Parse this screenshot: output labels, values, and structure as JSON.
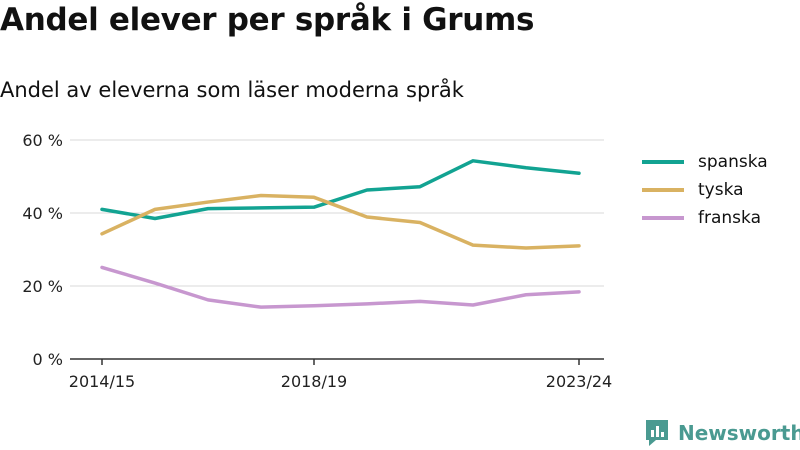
{
  "title": "Andel elever per språk i Grums",
  "subtitle": "Andel av eleverna som läser moderna språk",
  "brand": {
    "name": "Newsworthy",
    "icon": "newsworthy-logo-icon",
    "color": "#4a9a91"
  },
  "chart_data": {
    "type": "line",
    "x": [
      "2014/15",
      "2015/16",
      "2016/17",
      "2017/18",
      "2018/19",
      "2019/20",
      "2020/21",
      "2021/22",
      "2022/23",
      "2023/24"
    ],
    "x_tick_labels": [
      "2014/15",
      "2018/19",
      "2023/24"
    ],
    "y_ticks": [
      "0 %",
      "20 %",
      "40 %",
      "60 %"
    ],
    "ylim": [
      0,
      60
    ],
    "grid": true,
    "legend_position": "right",
    "series": [
      {
        "name": "spanska",
        "color": "#12a392",
        "values": [
          41,
          38.5,
          41.2,
          41.4,
          41.6,
          46.3,
          47.2,
          54.3,
          52.4,
          50.9
        ]
      },
      {
        "name": "tyska",
        "color": "#d9b262",
        "values": [
          34.3,
          41,
          43,
          44.8,
          44.3,
          38.9,
          37.4,
          31.2,
          30.4,
          31
        ]
      },
      {
        "name": "franska",
        "color": "#c797cf",
        "values": [
          25.1,
          20.8,
          16.2,
          14.2,
          14.6,
          15.1,
          15.8,
          14.8,
          17.6,
          18.4
        ]
      }
    ]
  }
}
